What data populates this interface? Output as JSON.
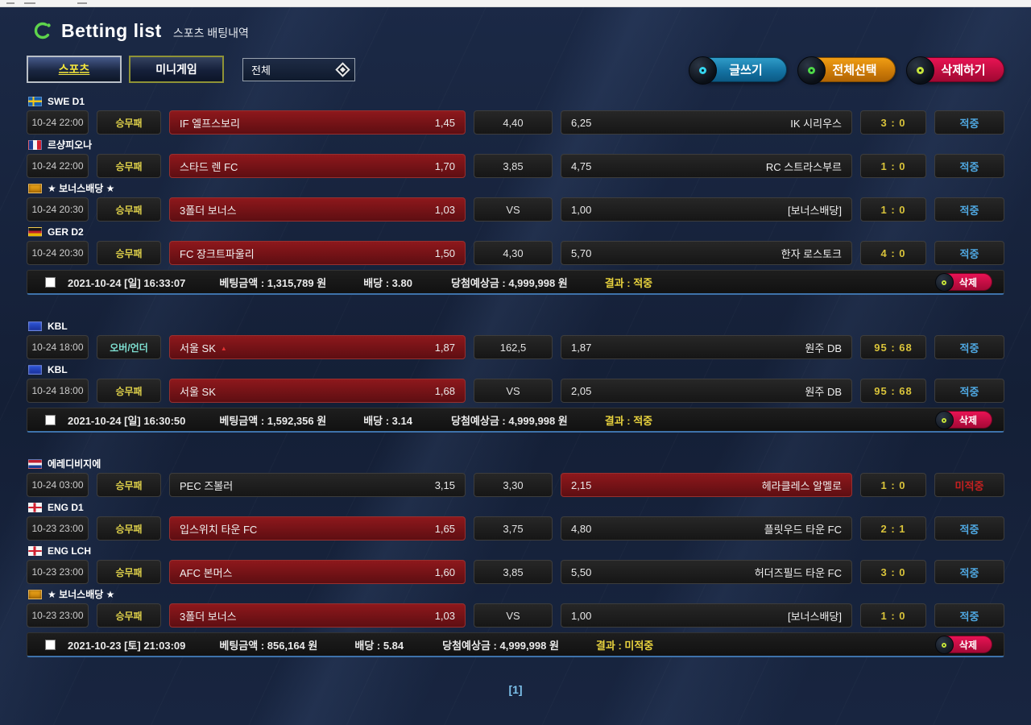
{
  "header": {
    "title": "Betting list",
    "subtitle": "스포츠 배팅내역"
  },
  "tabs": {
    "sports": "스포츠",
    "minigame": "미니게임"
  },
  "filter": {
    "value": "전체"
  },
  "actions": {
    "write": "글쓰기",
    "select_all": "전체선택",
    "delete_selected": "삭제하기",
    "delete_row": "삭제"
  },
  "colors": {
    "win": "#4fa8e2",
    "lose": "#c42020",
    "score": "#d9c33a",
    "selected_bg": "#7f1518",
    "write_btn": "#1a7fae",
    "select_all_btn": "#d88410",
    "delete_btn": "#cf0d44"
  },
  "groups": [
    {
      "rows": [
        {
          "league": "SWE D1",
          "flag": "swe",
          "time": "10-24 22:00",
          "bet_type": "승무패",
          "bet_type_style": "yellow",
          "home": "IF 엘프스보리",
          "home_odds": "1,45",
          "draw": "4,40",
          "away_odds": "6,25",
          "away": "IK 시리우스",
          "selected": "home",
          "score": "3 : 0",
          "result": "적중",
          "result_style": "win"
        },
        {
          "league": "르샹피오나",
          "flag": "fra",
          "time": "10-24 22:00",
          "bet_type": "승무패",
          "bet_type_style": "yellow",
          "home": "스타드 렌 FC",
          "home_odds": "1,70",
          "draw": "3,85",
          "away_odds": "4,75",
          "away": "RC 스트라스부르",
          "selected": "home",
          "score": "1 : 0",
          "result": "적중",
          "result_style": "win"
        },
        {
          "league": "★ 보너스배당 ★",
          "flag": "bonus",
          "time": "10-24 20:30",
          "bet_type": "승무패",
          "bet_type_style": "yellow",
          "home": "3폴더 보너스",
          "home_odds": "1,03",
          "draw": "VS",
          "away_odds": "1,00",
          "away": "[보너스배당]",
          "selected": "home",
          "score": "1 : 0",
          "result": "적중",
          "result_style": "win"
        },
        {
          "league": "GER D2",
          "flag": "ger",
          "time": "10-24 20:30",
          "bet_type": "승무패",
          "bet_type_style": "yellow",
          "home": "FC 장크트파울리",
          "home_odds": "1,50",
          "draw": "4,30",
          "away_odds": "5,70",
          "away": "한자 로스토크",
          "selected": "home",
          "score": "4 : 0",
          "result": "적중",
          "result_style": "win"
        }
      ],
      "summary": {
        "datetime": "2021-10-24 [일] 16:33:07",
        "bet_amount": "베팅금액 : 1,315,789 원",
        "odds": "배당 : 3.80",
        "expected": "당첨예상금 : 4,999,998 원",
        "result": "결과 : 적중"
      }
    },
    {
      "rows": [
        {
          "league": "KBL",
          "flag": "kbl",
          "time": "10-24 18:00",
          "bet_type": "오버/언더",
          "bet_type_style": "teal",
          "home": "서울 SK",
          "home_marker": "▲",
          "home_odds": "1,87",
          "draw": "162,5",
          "away_odds": "1,87",
          "away": "원주 DB",
          "selected": "home",
          "score": "95 : 68",
          "result": "적중",
          "result_style": "win"
        },
        {
          "league": "KBL",
          "flag": "kbl",
          "time": "10-24 18:00",
          "bet_type": "승무패",
          "bet_type_style": "yellow",
          "home": "서울 SK",
          "home_odds": "1,68",
          "draw": "VS",
          "away_odds": "2,05",
          "away": "원주 DB",
          "selected": "home",
          "score": "95 : 68",
          "result": "적중",
          "result_style": "win"
        }
      ],
      "summary": {
        "datetime": "2021-10-24 [일] 16:30:50",
        "bet_amount": "베팅금액 : 1,592,356 원",
        "odds": "배당 : 3.14",
        "expected": "당첨예상금 : 4,999,998 원",
        "result": "결과 : 적중"
      }
    },
    {
      "rows": [
        {
          "league": "에레디비지에",
          "flag": "ned",
          "time": "10-24 03:00",
          "bet_type": "승무패",
          "bet_type_style": "yellow",
          "home": "PEC 즈볼러",
          "home_odds": "3,15",
          "draw": "3,30",
          "away_odds": "2,15",
          "away": "헤라클레스 알멜로",
          "selected": "away",
          "score": "1 : 0",
          "result": "미적중",
          "result_style": "lose"
        },
        {
          "league": "ENG D1",
          "flag": "eng",
          "time": "10-23 23:00",
          "bet_type": "승무패",
          "bet_type_style": "yellow",
          "home": "입스위치 타운 FC",
          "home_odds": "1,65",
          "draw": "3,75",
          "away_odds": "4,80",
          "away": "플릿우드 타운 FC",
          "selected": "home",
          "score": "2 : 1",
          "result": "적중",
          "result_style": "win"
        },
        {
          "league": "ENG LCH",
          "flag": "eng",
          "time": "10-23 23:00",
          "bet_type": "승무패",
          "bet_type_style": "yellow",
          "home": "AFC 본머스",
          "home_odds": "1,60",
          "draw": "3,85",
          "away_odds": "5,50",
          "away": "허더즈필드 타운 FC",
          "selected": "home",
          "score": "3 : 0",
          "result": "적중",
          "result_style": "win"
        },
        {
          "league": "★ 보너스배당 ★",
          "flag": "bonus",
          "time": "10-23 23:00",
          "bet_type": "승무패",
          "bet_type_style": "yellow",
          "home": "3폴더 보너스",
          "home_odds": "1,03",
          "draw": "VS",
          "away_odds": "1,00",
          "away": "[보너스배당]",
          "selected": "home",
          "score": "1 : 0",
          "result": "적중",
          "result_style": "win"
        }
      ],
      "summary": {
        "datetime": "2021-10-23 [토] 21:03:09",
        "bet_amount": "베팅금액 : 856,164 원",
        "odds": "배당 : 5.84",
        "expected": "당첨예상금 : 4,999,998 원",
        "result": "결과 : 미적중"
      }
    }
  ],
  "pagination": "[1]"
}
